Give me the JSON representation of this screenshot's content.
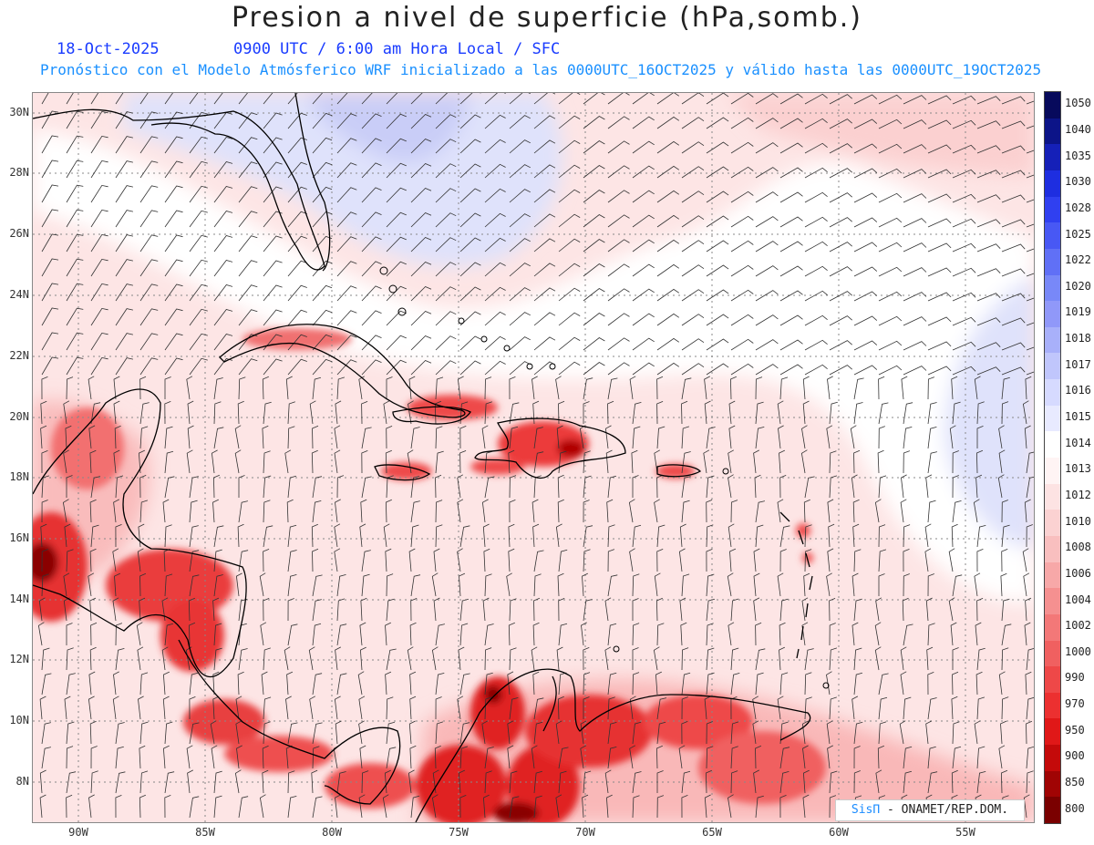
{
  "header": {
    "title": "Presion a nivel de superficie (hPa,somb.)",
    "date": "18-Oct-2025",
    "time_info": "0900 UTC / 6:00 am Hora Local / SFC",
    "model_info": "Pronóstico con el Modelo Atmósferico WRF inicializado a las 0000UTC_16OCT2025 y válido hasta las  0000UTC_19OCT2025"
  },
  "axes": {
    "lat_labels": [
      "30N",
      "28N",
      "26N",
      "24N",
      "22N",
      "20N",
      "18N",
      "16N",
      "14N",
      "12N",
      "10N",
      "8N"
    ],
    "lon_labels": [
      "90W",
      "85W",
      "80W",
      "75W",
      "70W",
      "65W",
      "60W",
      "55W"
    ]
  },
  "colorbar": {
    "labels": [
      "1050",
      "1040",
      "1035",
      "1030",
      "1028",
      "1025",
      "1022",
      "1020",
      "1019",
      "1018",
      "1017",
      "1016",
      "1015",
      "1014",
      "1013",
      "1012",
      "1010",
      "1008",
      "1006",
      "1004",
      "1002",
      "1000",
      "990",
      "970",
      "950",
      "900",
      "850",
      "800"
    ],
    "colors": [
      "#070a5c",
      "#0c1488",
      "#1520b8",
      "#1e2ee0",
      "#3040f0",
      "#4858f4",
      "#6070f6",
      "#7888f8",
      "#9098f9",
      "#a8b0fa",
      "#c0c6fc",
      "#d6daff",
      "#e8eaff",
      "#ffffff",
      "#fff4f4",
      "#fde3e3",
      "#fbd2d2",
      "#f9bfbf",
      "#f7a8a8",
      "#f59090",
      "#f37878",
      "#f06060",
      "#ee4848",
      "#ec3030",
      "#e01818",
      "#c40a0a",
      "#a00404",
      "#7a0000"
    ]
  },
  "credit": {
    "brand": "SisΠ",
    "text": " - ONAMET/REP.DOM."
  }
}
